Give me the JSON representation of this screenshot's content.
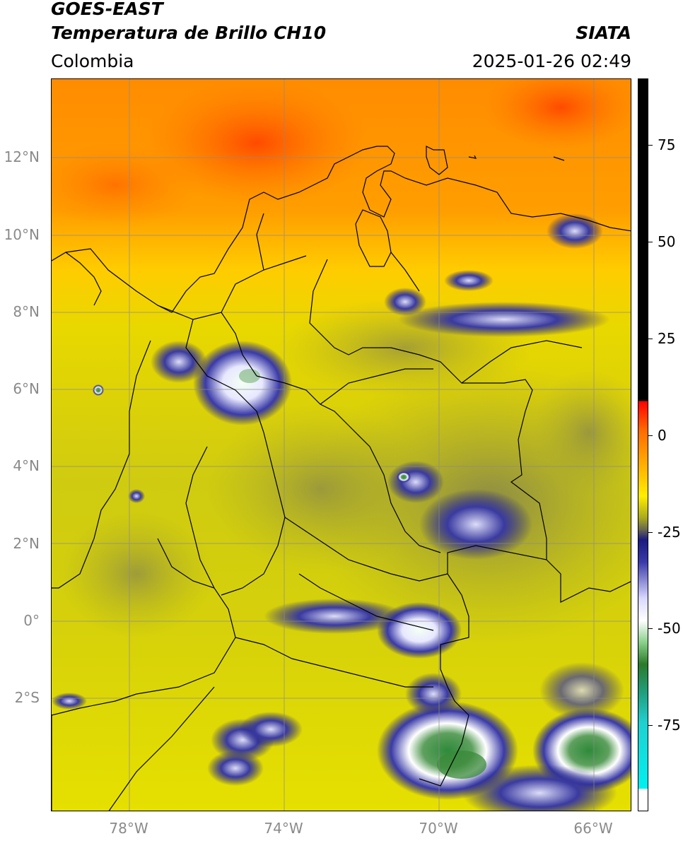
{
  "header": {
    "title_line1": "GOES-EAST",
    "title_line2": "Temperatura de Brillo CH10",
    "region": "Colombia",
    "source": "SIATA",
    "datetime": "2025-01-26 02:49"
  },
  "map": {
    "lat_labels": [
      "12°N",
      "10°N",
      "8°N",
      "6°N",
      "4°N",
      "2°N",
      "0°",
      "2°S"
    ],
    "lon_labels": [
      "78°W",
      "74°W",
      "70°W",
      "66°W"
    ]
  },
  "colorbar": {
    "labels": [
      "75",
      "50",
      "25",
      "0",
      "-25",
      "-50",
      "-75"
    ]
  },
  "colors": {
    "warm": "#ff7a00",
    "moderate": "#ffdd00",
    "cool": "#b8b800",
    "cold": "#1a1a80",
    "very_cold": "#ffffff",
    "extreme": "#3a8a3a"
  }
}
